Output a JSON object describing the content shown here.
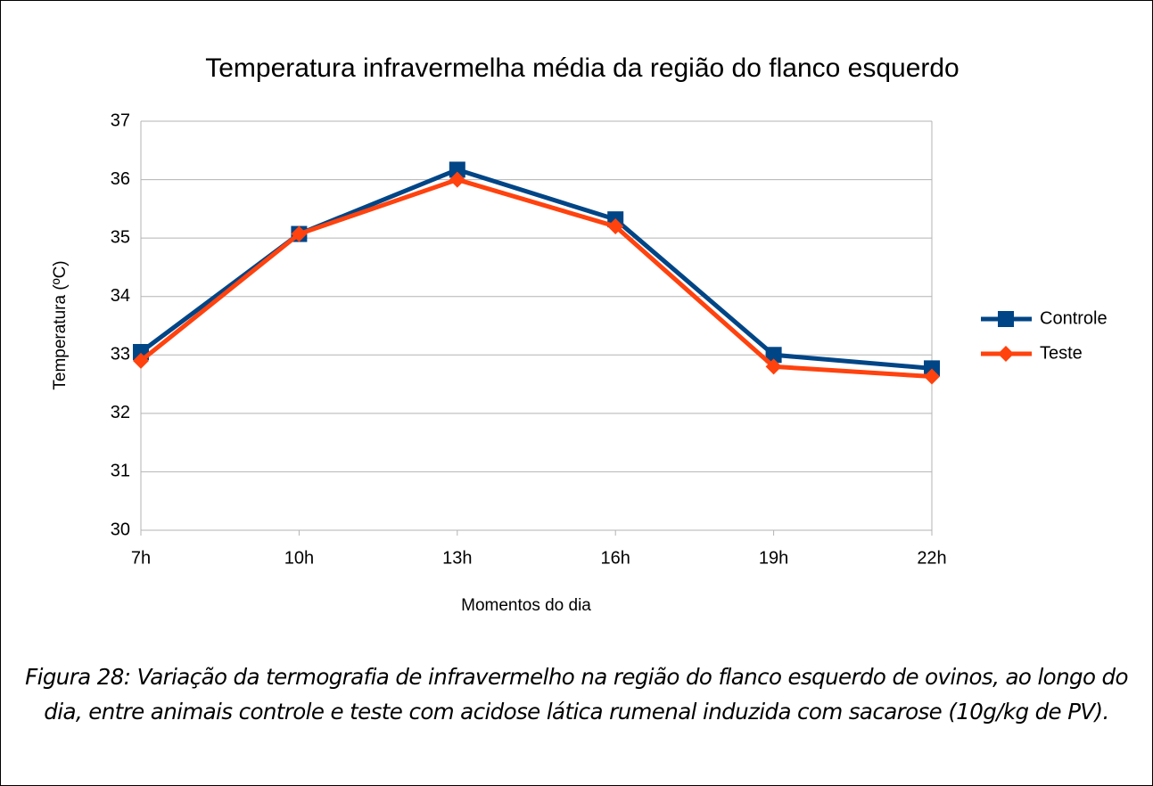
{
  "chart_data": {
    "type": "line",
    "title": "Temperatura infravermelha média da região do flanco esquerdo",
    "x_label": "Momentos do dia",
    "y_label": "Temperatura (ºC)",
    "categories": [
      "7h",
      "10h",
      "13h",
      "16h",
      "19h",
      "22h"
    ],
    "series": [
      {
        "name": "Controle",
        "color": "#004586",
        "marker": "square",
        "values": [
          33.05,
          35.07,
          36.17,
          35.32,
          33.0,
          32.77
        ]
      },
      {
        "name": "Teste",
        "color": "#ff420e",
        "marker": "diamond",
        "values": [
          32.9,
          35.07,
          36.0,
          35.2,
          32.8,
          32.63
        ]
      }
    ],
    "ylim": [
      30,
      37
    ],
    "yticks": [
      30,
      31,
      32,
      33,
      34,
      35,
      36,
      37
    ],
    "grid": true,
    "legend": "right"
  },
  "caption": "Figura 28: Variação da termografia de infravermelho na região do flanco esquerdo de ovinos, ao longo do dia, entre animais controle e teste com acidose lática rumenal induzida com sacarose (10g/kg de PV)."
}
